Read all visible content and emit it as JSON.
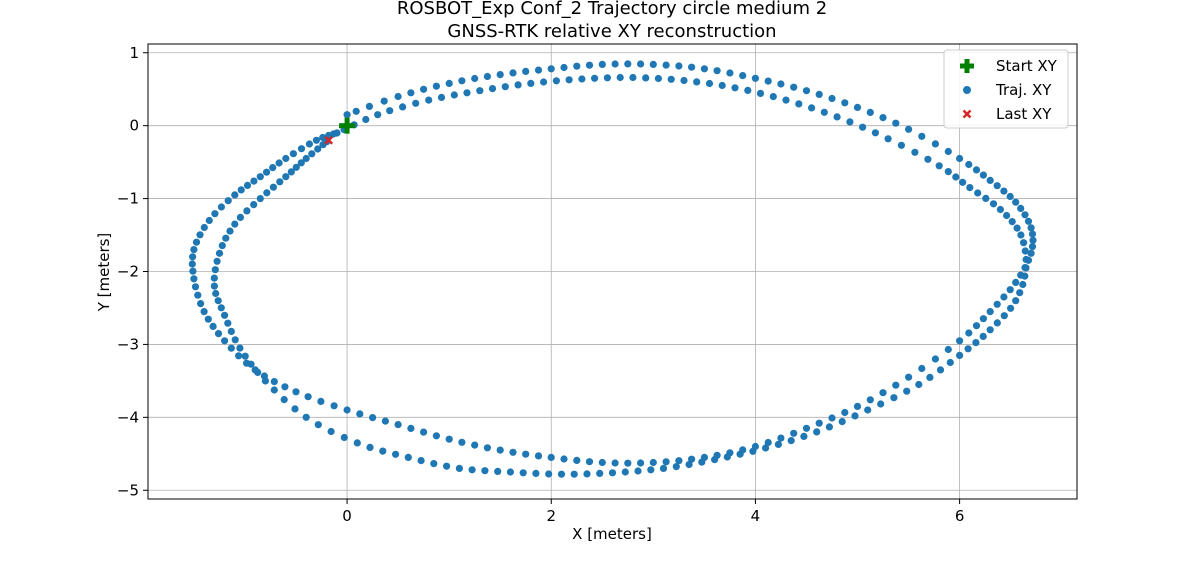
{
  "chart_data": {
    "type": "scatter",
    "title": "ROSBOT_Exp Conf_2 Trajectory circle medium 2",
    "subtitle": "GNSS-RTK relative XY reconstruction",
    "xlabel": "X [meters]",
    "ylabel": "Y [meters]",
    "xlim": [
      -1.95,
      7.15
    ],
    "ylim": [
      -5.12,
      1.12
    ],
    "x_ticks": [
      0,
      2,
      4,
      6
    ],
    "x_tick_labels": [
      "0",
      "2",
      "4",
      "6"
    ],
    "y_ticks": [
      1,
      0,
      -1,
      -2,
      -3,
      -4,
      -5
    ],
    "y_tick_labels": [
      "1",
      "0",
      "−1",
      "−2",
      "−3",
      "−4",
      "−5"
    ],
    "grid": true,
    "legend_position": "top-right",
    "colors": {
      "start": "#008000",
      "trajectory": "#1f77b4",
      "last": "#d62728"
    },
    "series": [
      {
        "name": "Start XY",
        "marker": "plus",
        "x": [
          0.0
        ],
        "y": [
          0.0
        ]
      },
      {
        "name": "Traj. XY",
        "marker": "circle",
        "laps": [
          {
            "x": [
              0.0,
              0.5,
              1.0,
              1.5,
              2.0,
              2.5,
              3.0,
              3.5,
              4.0,
              4.5,
              5.0,
              5.5,
              6.0,
              6.3,
              6.55,
              6.7,
              6.7,
              6.55,
              6.3,
              6.0,
              5.5,
              5.0,
              4.5,
              4.0,
              3.5,
              3.0,
              2.5,
              2.0,
              1.5,
              1.0,
              0.5,
              0.0,
              -0.5,
              -0.9,
              -1.2,
              -1.4,
              -1.5,
              -1.5,
              -1.35,
              -1.1,
              -0.85,
              -0.6,
              -0.3,
              -0.1
            ],
            "y": [
              0.15,
              0.4,
              0.58,
              0.7,
              0.78,
              0.84,
              0.84,
              0.78,
              0.65,
              0.48,
              0.25,
              -0.05,
              -0.45,
              -0.75,
              -1.05,
              -1.4,
              -1.75,
              -2.15,
              -2.55,
              -2.95,
              -3.45,
              -3.85,
              -4.15,
              -4.4,
              -4.55,
              -4.62,
              -4.62,
              -4.55,
              -4.45,
              -4.3,
              -4.1,
              -3.9,
              -3.65,
              -3.35,
              -2.95,
              -2.55,
              -2.1,
              -1.7,
              -1.3,
              -0.95,
              -0.7,
              -0.45,
              -0.2,
              -0.1
            ]
          },
          {
            "x": [
              -0.1,
              0.3,
              0.8,
              1.3,
              1.8,
              2.3,
              2.8,
              3.3,
              3.8,
              4.3,
              4.8,
              5.3,
              5.8,
              6.1,
              6.4,
              6.6,
              6.65,
              6.55,
              6.3,
              6.0,
              5.6,
              5.1,
              4.6,
              4.1,
              3.6,
              3.1,
              2.6,
              2.1,
              1.6,
              1.1,
              0.6,
              0.1,
              -0.4,
              -0.8,
              -1.05,
              -1.2,
              -1.3,
              -1.25,
              -1.1,
              -0.85,
              -0.6,
              -0.4,
              -0.2
            ],
            "y": [
              -0.1,
              0.15,
              0.35,
              0.48,
              0.58,
              0.64,
              0.66,
              0.62,
              0.52,
              0.35,
              0.12,
              -0.18,
              -0.55,
              -0.85,
              -1.15,
              -1.5,
              -1.95,
              -2.4,
              -2.8,
              -3.15,
              -3.55,
              -3.9,
              -4.2,
              -4.42,
              -4.58,
              -4.7,
              -4.76,
              -4.78,
              -4.75,
              -4.7,
              -4.55,
              -4.35,
              -4.0,
              -3.5,
              -3.05,
              -2.6,
              -2.2,
              -1.75,
              -1.35,
              -1.0,
              -0.7,
              -0.45,
              -0.22
            ]
          }
        ]
      },
      {
        "name": "Last XY",
        "marker": "x",
        "x": [
          -0.18
        ],
        "y": [
          -0.2
        ]
      }
    ]
  }
}
